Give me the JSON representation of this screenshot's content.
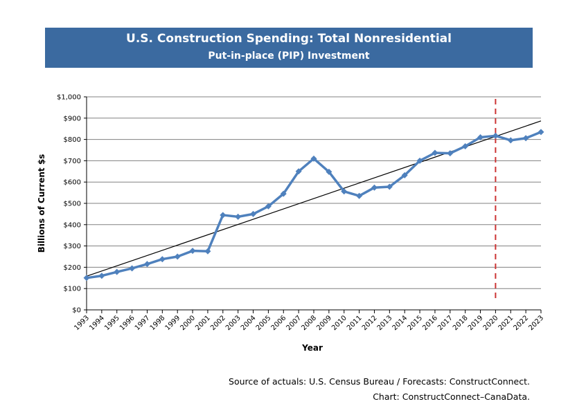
{
  "chart_data": {
    "type": "line",
    "title": "U.S. Construction Spending: Total Nonresidential",
    "subtitle": "Put-in-place (PIP) Investment",
    "xlabel": "Year",
    "ylabel": "Billions of Current $s",
    "ylim": [
      0,
      1000
    ],
    "ytick_values": [
      0,
      100,
      200,
      300,
      400,
      500,
      600,
      700,
      800,
      900,
      1000
    ],
    "ytick_labels": [
      "$0",
      "$100",
      "$200",
      "$300",
      "$400",
      "$500",
      "$600",
      "$700",
      "$800",
      "$900",
      "$1,000"
    ],
    "categories": [
      "1993",
      "1994",
      "1995",
      "1996",
      "1997",
      "1998",
      "1999",
      "2000",
      "2001",
      "2002",
      "2003",
      "2004",
      "2005",
      "2006",
      "2007",
      "2008",
      "2009",
      "2010",
      "2011",
      "2012",
      "2013",
      "2014",
      "2015",
      "2016",
      "2017",
      "2018",
      "2019",
      "2020",
      "2021",
      "2022",
      "2023"
    ],
    "series": [
      {
        "name": "Total Nonresidential",
        "color": "#4f81bd",
        "values": [
          150,
          160,
          178,
          195,
          215,
          238,
          250,
          277,
          275,
          445,
          437,
          450,
          486,
          545,
          650,
          710,
          648,
          556,
          535,
          574,
          578,
          632,
          700,
          737,
          735,
          768,
          810,
          817,
          796,
          806,
          835
        ]
      }
    ],
    "trendline": {
      "color": "#000000",
      "start_value": 158,
      "end_value": 887
    },
    "forecast_marker": {
      "category": "2020",
      "color": "#cc3333",
      "style": "dashed"
    },
    "grid": true
  },
  "source_line1": "Source of actuals: U.S. Census Bureau / Forecasts: ConstructConnect.",
  "source_line2": "Chart: ConstructConnect–CanaData."
}
